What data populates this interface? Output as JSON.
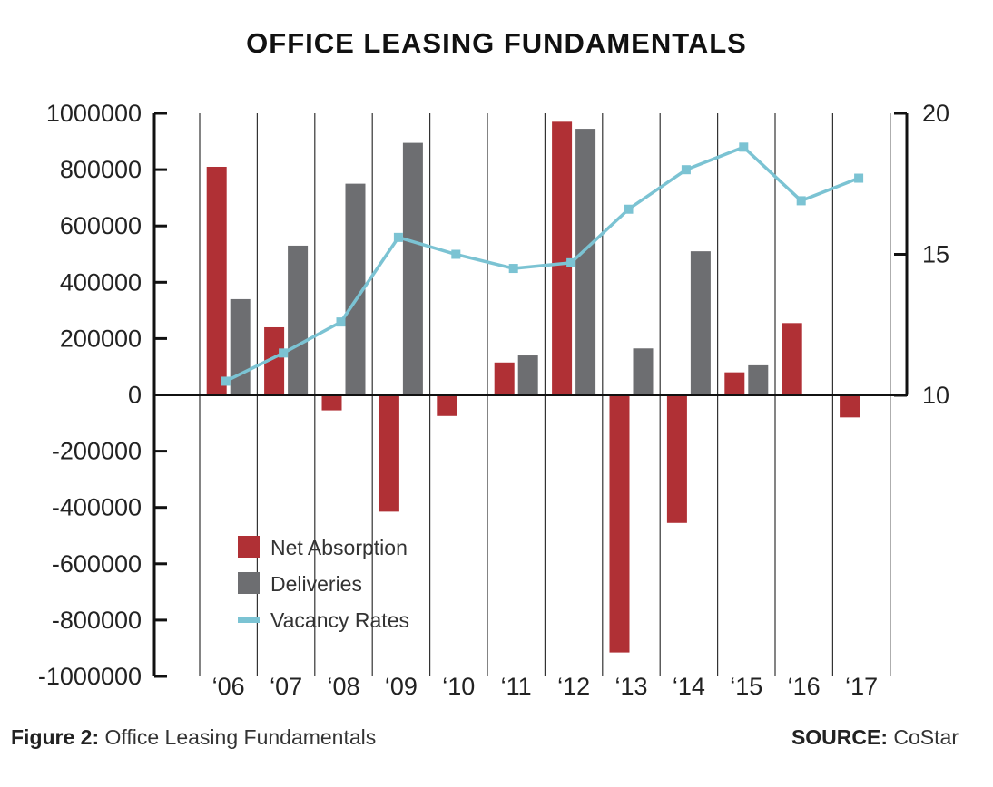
{
  "chart_data": {
    "type": "bar",
    "title": "OFFICE LEASING FUNDAMENTALS",
    "categories": [
      "‘06",
      "‘07",
      "‘08",
      "‘09",
      "‘10",
      "‘11",
      "‘12",
      "‘13",
      "‘14",
      "‘15",
      "‘16",
      "‘17"
    ],
    "series": [
      {
        "name": "Net Absorption",
        "type": "bar",
        "axis": "left",
        "color": "#b03035",
        "values": [
          810000,
          240000,
          -55000,
          -415000,
          -75000,
          115000,
          970000,
          -915000,
          -455000,
          80000,
          255000,
          -80000
        ]
      },
      {
        "name": "Deliveries",
        "type": "bar",
        "axis": "left",
        "color": "#6d6e71",
        "values": [
          340000,
          530000,
          750000,
          895000,
          null,
          140000,
          945000,
          165000,
          510000,
          105000,
          null,
          null
        ]
      },
      {
        "name": "Vacancy Rates",
        "type": "line",
        "axis": "right",
        "color": "#7bc3d3",
        "values": [
          10.5,
          11.5,
          12.6,
          15.6,
          15.0,
          14.5,
          14.7,
          16.6,
          18.0,
          18.8,
          16.9,
          17.7
        ]
      }
    ],
    "y_left": {
      "min": -1000000,
      "max": 1000000,
      "ticks": [
        1000000,
        800000,
        600000,
        400000,
        200000,
        0,
        -200000,
        -400000,
        -600000,
        -800000,
        -1000000
      ],
      "tick_labels": [
        "1000000",
        "800000",
        "600000",
        "400000",
        "200000",
        "0",
        "-200000",
        "-400000",
        "-600000",
        "-800000",
        "-1000000"
      ]
    },
    "y_right": {
      "min": 0,
      "max": 20,
      "ticks": [
        20,
        15,
        10
      ],
      "tick_labels": [
        "20",
        "15",
        "10"
      ]
    },
    "legend": {
      "position": "lower-left",
      "entries": [
        "Net Absorption",
        "Deliveries",
        "Vacancy Rates"
      ]
    },
    "grid": "vertical separators between categories"
  },
  "caption": {
    "label": "Figure 2:",
    "text": "Office Leasing Fundamentals"
  },
  "source": {
    "label": "SOURCE:",
    "text": "CoStar"
  }
}
